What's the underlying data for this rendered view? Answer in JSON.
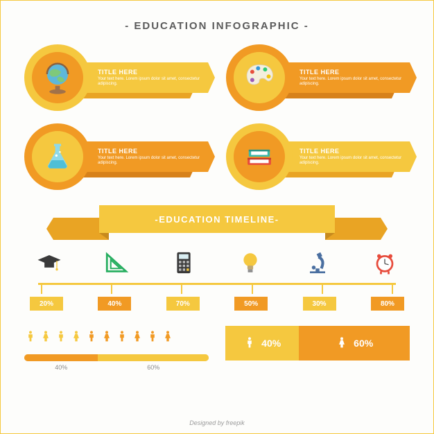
{
  "title": "EDUCATION INFOGRAPHIC",
  "colors": {
    "yellow": "#f5c83f",
    "yellow_dark": "#e9a424",
    "orange": "#f19a24",
    "text_gray": "#5b5b5b",
    "light_gray": "#8a8a8a"
  },
  "circle_items": [
    {
      "icon": "globe",
      "title": "TITLE HERE",
      "body": "Your text here. Lorem ipsum dolor sit amet, consectetur adipiscing.",
      "circle_bg": "#f5c83f",
      "inner_bg": "#f19a24",
      "ribbon_front": "#f5c83f",
      "ribbon_back": "#e9a424"
    },
    {
      "icon": "palette",
      "title": "TITLE HERE",
      "body": "Your text here. Lorem ipsum dolor sit amet, consectetur adipiscing.",
      "circle_bg": "#f19a24",
      "inner_bg": "#f5c83f",
      "ribbon_front": "#f19a24",
      "ribbon_back": "#d7811a"
    },
    {
      "icon": "flask",
      "title": "TITLE HERE",
      "body": "Your text here. Lorem ipsum dolor sit amet, consectetur adipiscing.",
      "circle_bg": "#f19a24",
      "inner_bg": "#f5c83f",
      "ribbon_front": "#f19a24",
      "ribbon_back": "#d7811a"
    },
    {
      "icon": "books",
      "title": "TITLE HERE",
      "body": "Your text here. Lorem ipsum dolor sit amet, consectetur adipiscing.",
      "circle_bg": "#f5c83f",
      "inner_bg": "#f19a24",
      "ribbon_front": "#f5c83f",
      "ribbon_back": "#e9a424"
    }
  ],
  "timeline": {
    "heading": "EDUCATION TIMELINE",
    "axis_color": "#f5c83f",
    "items": [
      {
        "icon": "grad-cap",
        "value": "20%",
        "label_bg": "#f5c83f",
        "label_color": "#ffffff"
      },
      {
        "icon": "set-square",
        "value": "40%",
        "label_bg": "#f19a24",
        "label_color": "#ffffff"
      },
      {
        "icon": "calculator",
        "value": "70%",
        "label_bg": "#f5c83f",
        "label_color": "#ffffff"
      },
      {
        "icon": "bulb",
        "value": "50%",
        "label_bg": "#f19a24",
        "label_color": "#ffffff"
      },
      {
        "icon": "microscope",
        "value": "30%",
        "label_bg": "#f5c83f",
        "label_color": "#ffffff"
      },
      {
        "icon": "clock",
        "value": "80%",
        "label_bg": "#f19a24",
        "label_color": "#ffffff"
      }
    ]
  },
  "people_bar": {
    "icons": [
      {
        "type": "male",
        "color": "#f5c83f"
      },
      {
        "type": "female",
        "color": "#f5c83f"
      },
      {
        "type": "male",
        "color": "#f5c83f"
      },
      {
        "type": "female",
        "color": "#f5c83f"
      },
      {
        "type": "male",
        "color": "#f19a24"
      },
      {
        "type": "female",
        "color": "#f19a24"
      },
      {
        "type": "male",
        "color": "#f19a24"
      },
      {
        "type": "female",
        "color": "#f19a24"
      },
      {
        "type": "male",
        "color": "#f19a24"
      },
      {
        "type": "female",
        "color": "#f19a24"
      }
    ],
    "segments": [
      {
        "percent": 40,
        "color": "#f19a24",
        "label": "40%"
      },
      {
        "percent": 60,
        "color": "#f5c83f",
        "label": "60%"
      }
    ]
  },
  "gender_split": {
    "segments": [
      {
        "icon": "male",
        "percent": 40,
        "label": "40%",
        "bg": "#f5c83f"
      },
      {
        "icon": "female",
        "percent": 60,
        "label": "60%",
        "bg": "#f19a24"
      }
    ]
  },
  "credit": "Designed by freepik"
}
